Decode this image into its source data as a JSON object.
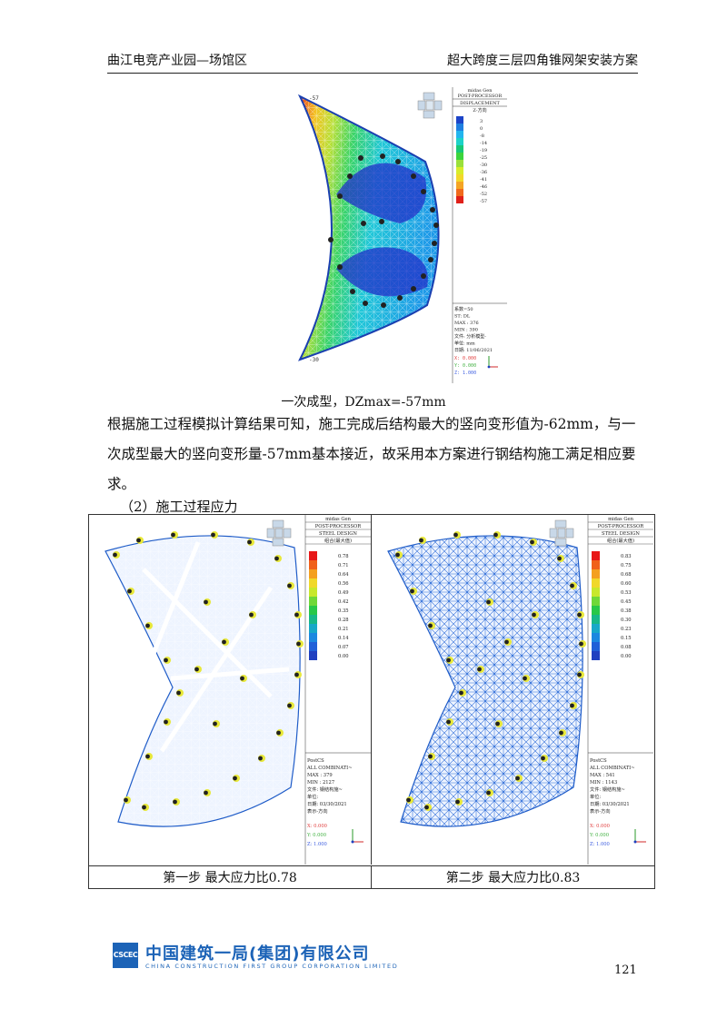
{
  "header": {
    "left": "曲江电竞产业园—场馆区",
    "right": "超大跨度三层四角锥网架安装方案"
  },
  "figure1": {
    "panel_title_1": "midas Gen",
    "panel_title_2": "POST-PROCESSOR",
    "panel_title_3": "DISPLACEMENT",
    "panel_title_4": "Z-方向",
    "legend_values": [
      "3",
      "0",
      "-8",
      "-14",
      "-19",
      "-25",
      "-30",
      "-36",
      "-41",
      "-46",
      "-52",
      "-57"
    ],
    "legend_colors": [
      "#1c44c8",
      "#1f7fe0",
      "#22b5ee",
      "#1cd2c8",
      "#18c878",
      "#3cd43c",
      "#9ae03a",
      "#d8ec2a",
      "#f2d82a",
      "#f4a424",
      "#f06a1c",
      "#e0201a"
    ],
    "info_lines": [
      "系数=50",
      "ST: DL",
      "MAX : 376",
      "MIN : 390",
      "文件: 分析模型-",
      "单位: mm",
      "日期: 11/06/2021"
    ],
    "axis_x": "X: 0.000",
    "axis_y": "Y: 0.000",
    "axis_z": "Z: 1.000"
  },
  "caption1": "一次成型，DZmax=-57mm",
  "paragraph1": "根据施工过程模拟计算结果可知，施工完成后结构最大的竖向变形值为-62mm，与一次成型最大的竖向变形量-57mm基本接近，故采用本方案进行钢结构施工满足相应要求。",
  "section2": "（2）施工过程应力",
  "figure2": {
    "left": {
      "panel_title_1": "midas Gen",
      "panel_title_2": "POST-PROCESSOR",
      "panel_title_3": "STEEL DESIGN",
      "panel_title_4": "组合(最大值)",
      "legend_values": [
        "0.78",
        "0.71",
        "0.64",
        "0.56",
        "0.49",
        "0.42",
        "0.35",
        "0.28",
        "0.21",
        "0.14",
        "0.07",
        "0.00"
      ],
      "info_lines": [
        "PostCS",
        "ALL COMBINATI~",
        "MAX : 379",
        "MIN : 2127",
        "文件: 钢结构施~",
        "单位:",
        "日期: 03/30/2021",
        "表示-方向"
      ],
      "axis_x": "X: 0.000",
      "axis_y": "Y: 0.000",
      "axis_z": "Z: 1.000"
    },
    "right": {
      "panel_title_1": "midas Gen",
      "panel_title_2": "POST-PROCESSOR",
      "panel_title_3": "STEEL DESIGN",
      "panel_title_4": "组合(最大值)",
      "legend_values": [
        "0.83",
        "0.75",
        "0.68",
        "0.60",
        "0.53",
        "0.45",
        "0.38",
        "0.30",
        "0.23",
        "0.15",
        "0.08",
        "0.00"
      ],
      "info_lines": [
        "PostCS",
        "ALL COMBINATI~",
        "MAX : 541",
        "MIN : 1143",
        "文件: 钢结构施~",
        "单位:",
        "日期: 03/30/2021",
        "表示-方向"
      ],
      "axis_x": "X: 0.000",
      "axis_y": "Y: 0.000",
      "axis_z": "Z: 1.000"
    },
    "stress_colors": [
      "#e81818",
      "#f0601a",
      "#f4a020",
      "#f0d82a",
      "#c8e82c",
      "#70d838",
      "#28c848",
      "#18b888",
      "#18a8c8",
      "#1c88e0",
      "#2060d8",
      "#2040c0"
    ],
    "caption_left": "第一步  最大应力比0.78",
    "caption_right": "第二步  最大应力比0.83"
  },
  "footer": {
    "logo_text": "CSCEC",
    "company_cn": "中国建筑一局(集团)有限公司",
    "company_en": "CHINA CONSTRUCTION FIRST GROUP CORPORATION LIMITED",
    "page_number": "121"
  }
}
